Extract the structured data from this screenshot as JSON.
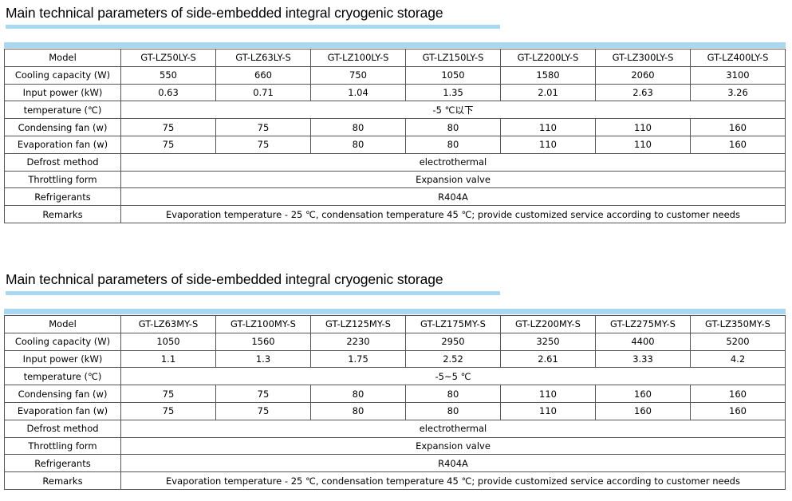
{
  "tables": [
    {
      "title": "Main technical parameters of side-embedded integral cryogenic storage",
      "header": {
        "label": "Model",
        "models": [
          "GT-LZ50LY-S",
          "GT-LZ63LY-S",
          "GT-LZ100LY-S",
          "GT-LZ150LY-S",
          "GT-LZ200LY-S",
          "GT-LZ300LY-S",
          "GT-LZ400LY-S"
        ]
      },
      "rows": {
        "cooling": {
          "label": "Cooling capacity (W)",
          "values": [
            "550",
            "660",
            "750",
            "1050",
            "1580",
            "2060",
            "3100"
          ]
        },
        "input": {
          "label": "Input power (kW)",
          "values": [
            "0.63",
            "0.71",
            "1.04",
            "1.35",
            "2.01",
            "2.63",
            "3.26"
          ]
        },
        "temperature": {
          "label": "temperature (℃)",
          "value": "-5 ℃以下"
        },
        "condensing": {
          "label": "Condensing fan (w)",
          "values": [
            "75",
            "75",
            "80",
            "80",
            "110",
            "110",
            "160"
          ]
        },
        "evaporation": {
          "label": "Evaporation fan (w)",
          "values": [
            "75",
            "75",
            "80",
            "80",
            "110",
            "110",
            "160"
          ]
        },
        "defrost": {
          "label": "Defrost method",
          "value": "electrothermal"
        },
        "throttling": {
          "label": "Throttling form",
          "value": "Expansion valve"
        },
        "refrigerants": {
          "label": "Refrigerants",
          "value": "R404A"
        },
        "remarks": {
          "label": "Remarks",
          "value": "Evaporation temperature - 25 ℃, condensation temperature 45 ℃; provide customized service according to customer needs"
        }
      }
    },
    {
      "title": "Main technical parameters of side-embedded integral cryogenic storage",
      "header": {
        "label": "Model",
        "models": [
          "GT-LZ63MY-S",
          "GT-LZ100MY-S",
          "GT-LZ125MY-S",
          "GT-LZ175MY-S",
          "GT-LZ200MY-S",
          "GT-LZ275MY-S",
          "GT-LZ350MY-S"
        ]
      },
      "rows": {
        "cooling": {
          "label": "Cooling capacity (W)",
          "values": [
            "1050",
            "1560",
            "2230",
            "2950",
            "3250",
            "4400",
            "5200"
          ]
        },
        "input": {
          "label": "Input power (kW)",
          "values": [
            "1.1",
            "1.3",
            "1.75",
            "2.52",
            "2.61",
            "3.33",
            "4.2"
          ]
        },
        "temperature": {
          "label": "temperature (℃)",
          "value": "-5~5 ℃"
        },
        "condensing": {
          "label": "Condensing fan (w)",
          "values": [
            "75",
            "75",
            "80",
            "80",
            "110",
            "160",
            "160"
          ]
        },
        "evaporation": {
          "label": "Evaporation fan (w)",
          "values": [
            "75",
            "75",
            "80",
            "80",
            "110",
            "160",
            "160"
          ]
        },
        "defrost": {
          "label": "Defrost method",
          "value": "electrothermal"
        },
        "throttling": {
          "label": "Throttling form",
          "value": "Expansion valve"
        },
        "refrigerants": {
          "label": "Refrigerants",
          "value": "R404A"
        },
        "remarks": {
          "label": "Remarks",
          "value": "Evaporation temperature - 25 ℃, condensation temperature 45 ℃; provide customized service according to customer needs"
        }
      }
    }
  ],
  "colors": {
    "accent_band": "#a8d8f2",
    "border": "#555555"
  }
}
